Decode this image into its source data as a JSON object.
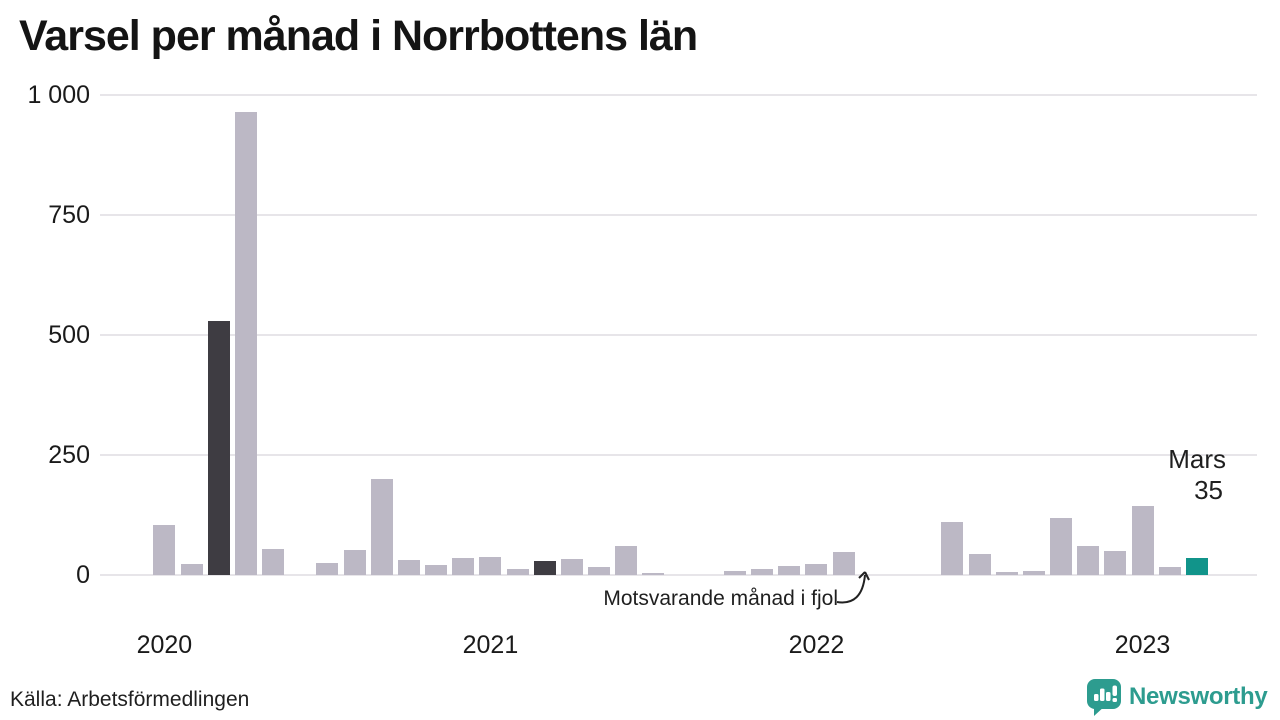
{
  "title": "Varsel per månad i Norrbottens län",
  "source": "Källa: Arbetsförmedlingen",
  "brand": {
    "name": "Newsworthy",
    "color": "#2d9c8f"
  },
  "annotations": {
    "last_year_label": "Motsvarande månad i fjol",
    "current_month_label": "Mars",
    "current_value_label": "35"
  },
  "colors": {
    "bar": "#bcb8c5",
    "bar_highlight": "#3e3c42",
    "bar_current": "#11948a",
    "gridline": "#e7e5e9",
    "text": "#1a1a1a"
  },
  "chart_data": {
    "type": "bar",
    "title": "Varsel per månad i Norrbottens län",
    "xlabel": "",
    "ylabel": "",
    "ylim": [
      0,
      1000
    ],
    "grid": "horizontal",
    "yticks": [
      0,
      250,
      500,
      750,
      1000
    ],
    "ytick_labels": [
      "0",
      "250",
      "500",
      "750",
      "1 000"
    ],
    "year_labels": [
      "2020",
      "2021",
      "2022",
      "2023"
    ],
    "months": [
      {
        "label": "jan 2020",
        "value": 105,
        "type": "past"
      },
      {
        "label": "feb 2020",
        "value": 22,
        "type": "past"
      },
      {
        "label": "mar 2020",
        "value": 530,
        "type": "same-month"
      },
      {
        "label": "apr 2020",
        "value": 965,
        "type": "past"
      },
      {
        "label": "maj 2020",
        "value": 55,
        "type": "past"
      },
      {
        "label": "jun 2020",
        "value": 0,
        "type": "past"
      },
      {
        "label": "jul 2020",
        "value": 25,
        "type": "past"
      },
      {
        "label": "aug 2020",
        "value": 52,
        "type": "past"
      },
      {
        "label": "sep 2020",
        "value": 200,
        "type": "past"
      },
      {
        "label": "okt 2020",
        "value": 32,
        "type": "past"
      },
      {
        "label": "nov 2020",
        "value": 20,
        "type": "past"
      },
      {
        "label": "dec 2020",
        "value": 36,
        "type": "past"
      },
      {
        "label": "jan 2021",
        "value": 38,
        "type": "past"
      },
      {
        "label": "feb 2021",
        "value": 13,
        "type": "past"
      },
      {
        "label": "mar 2021",
        "value": 30,
        "type": "same-month"
      },
      {
        "label": "apr 2021",
        "value": 33,
        "type": "past"
      },
      {
        "label": "maj 2021",
        "value": 16,
        "type": "past"
      },
      {
        "label": "jun 2021",
        "value": 60,
        "type": "past"
      },
      {
        "label": "jul 2021",
        "value": 4,
        "type": "past"
      },
      {
        "label": "aug 2021",
        "value": 0,
        "type": "past"
      },
      {
        "label": "sep 2021",
        "value": 0,
        "type": "past"
      },
      {
        "label": "okt 2021",
        "value": 8,
        "type": "past"
      },
      {
        "label": "nov 2021",
        "value": 13,
        "type": "past"
      },
      {
        "label": "dec 2021",
        "value": 18,
        "type": "past"
      },
      {
        "label": "jan 2022",
        "value": 22,
        "type": "past"
      },
      {
        "label": "feb 2022",
        "value": 47,
        "type": "past"
      },
      {
        "label": "mar 2022",
        "value": 0,
        "type": "same-month"
      },
      {
        "label": "apr 2022",
        "value": 0,
        "type": "past"
      },
      {
        "label": "maj 2022",
        "value": 0,
        "type": "past"
      },
      {
        "label": "jun 2022",
        "value": 110,
        "type": "past"
      },
      {
        "label": "jul 2022",
        "value": 43,
        "type": "past"
      },
      {
        "label": "aug 2022",
        "value": 6,
        "type": "past"
      },
      {
        "label": "sep 2022",
        "value": 9,
        "type": "past"
      },
      {
        "label": "okt 2022",
        "value": 118,
        "type": "past"
      },
      {
        "label": "nov 2022",
        "value": 60,
        "type": "past"
      },
      {
        "label": "dec 2022",
        "value": 50,
        "type": "past"
      },
      {
        "label": "jan 2023",
        "value": 143,
        "type": "past"
      },
      {
        "label": "feb 2023",
        "value": 16,
        "type": "past"
      },
      {
        "label": "mar 2023",
        "value": 35,
        "type": "current"
      }
    ]
  }
}
